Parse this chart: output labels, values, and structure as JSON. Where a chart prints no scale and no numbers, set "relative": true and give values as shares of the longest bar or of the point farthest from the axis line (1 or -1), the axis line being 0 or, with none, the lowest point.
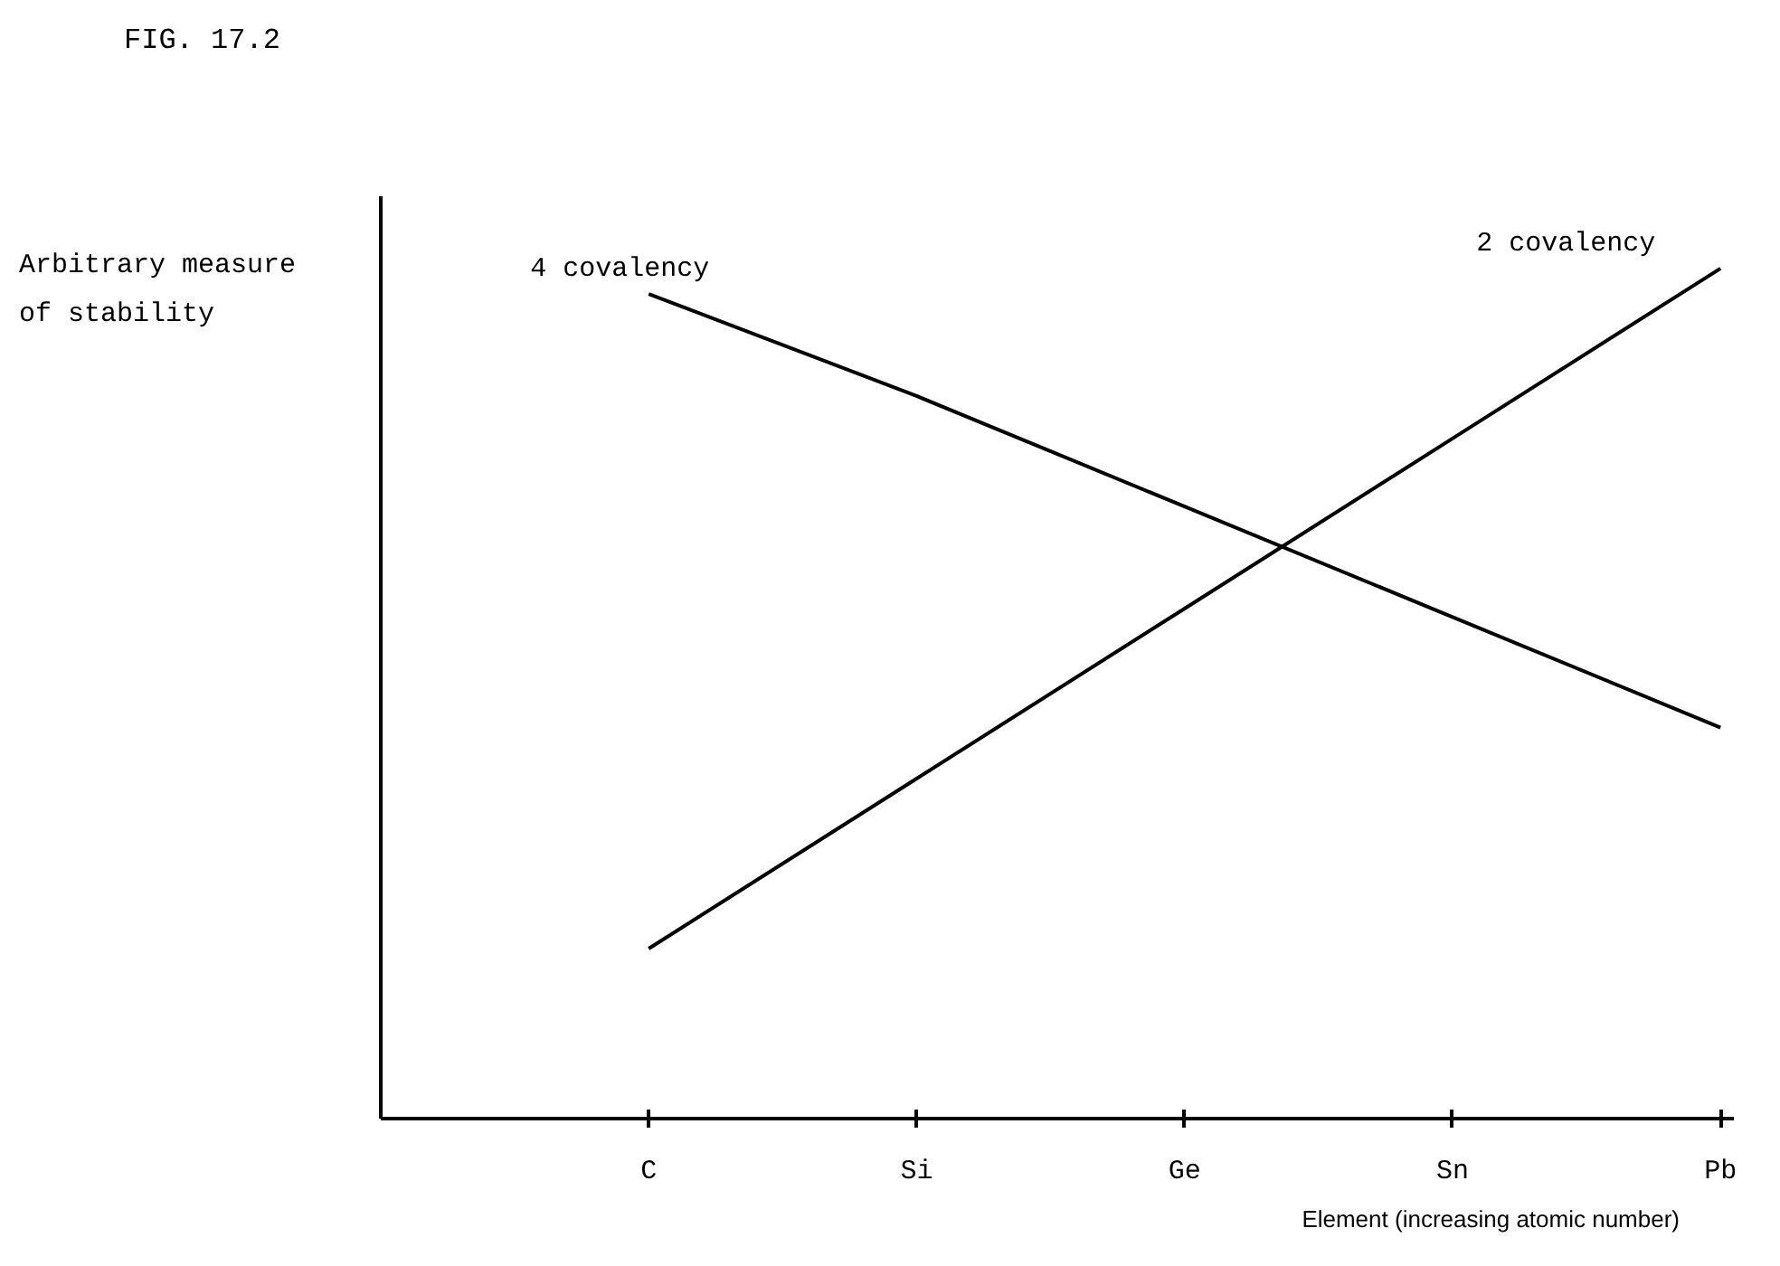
{
  "chart_data": {
    "type": "line",
    "title": "FIG. 17.2",
    "xlabel": "Element (increasing atomic number)",
    "ylabel": "Arbitrary measure\nof stability",
    "categories": [
      "C",
      "Si",
      "Ge",
      "Sn",
      "Pb"
    ],
    "relative": true,
    "grid": false,
    "legend": false,
    "marker": "none",
    "line_style": "solid",
    "series": [
      {
        "name": "4 covalency",
        "color": "#000000",
        "values": [
          0.97,
          0.85,
          0.72,
          0.59,
          0.46
        ]
      },
      {
        "name": "2 covalency",
        "color": "#000000",
        "values": [
          0.2,
          0.4,
          0.6,
          0.8,
          1.0
        ]
      }
    ]
  }
}
